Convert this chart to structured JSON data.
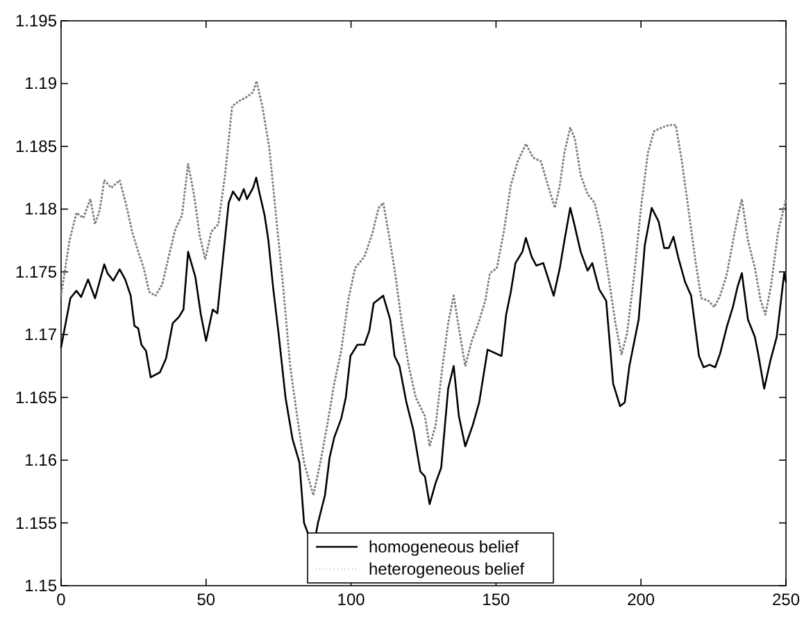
{
  "chart_data": {
    "type": "line",
    "xlim": [
      0,
      250
    ],
    "ylim": [
      1.15,
      1.195
    ],
    "xticks": [
      0,
      50,
      100,
      150,
      200,
      250
    ],
    "yticks": [
      1.15,
      1.155,
      1.16,
      1.165,
      1.17,
      1.175,
      1.18,
      1.185,
      1.19,
      1.195
    ],
    "grid": false,
    "legend": "bottom",
    "series": [
      {
        "name": "homogeneous belief",
        "color": "#000000",
        "line_style": "solid",
        "x": [
          0,
          3.2,
          5.3,
          6.9,
          9.3,
          11.7,
          14.9,
          16,
          18,
          20.2,
          22.1,
          24,
          25.3,
          26.6,
          27.7,
          29.3,
          30.9,
          34.1,
          36.2,
          38.5,
          40.6,
          42.2,
          43.8,
          46.3,
          48.2,
          50,
          52.3,
          53.9,
          55.8,
          57.8,
          59.3,
          61.4,
          63,
          64.1,
          66.2,
          67.3,
          68.3,
          70.2,
          71.5,
          73.1,
          75,
          77.4,
          79.8,
          82.2,
          83.8,
          87,
          88.6,
          91,
          92.6,
          94.2,
          96.6,
          98.2,
          99.8,
          102.2,
          104.6,
          106.3,
          107.8,
          111.1,
          113.5,
          115,
          116.7,
          119.1,
          121.5,
          123.9,
          125.5,
          127.1,
          129.2,
          131.1,
          133.5,
          135.4,
          137.2,
          139.4,
          142,
          144.2,
          147.1,
          151.9,
          153.5,
          155.1,
          156.7,
          159.1,
          160.3,
          162.3,
          163.9,
          166.3,
          169.9,
          172,
          173.6,
          175.6,
          176.8,
          179.2,
          181.6,
          183.2,
          185.6,
          188,
          190.4,
          192.8,
          194.4,
          196,
          199.2,
          201.3,
          203.7,
          206.1,
          208,
          209.6,
          211.2,
          212.8,
          215.2,
          217.3,
          220,
          221.6,
          223.7,
          225.6,
          227.3,
          229.7,
          231.7,
          233.3,
          234.8,
          236.9,
          239.3,
          240.4,
          242.5,
          244.6,
          246.8,
          249.4,
          250
        ],
        "values": [
          1.169,
          1.1729,
          1.1735,
          1.173,
          1.1744,
          1.1729,
          1.1756,
          1.1749,
          1.1743,
          1.1752,
          1.1744,
          1.1731,
          1.1707,
          1.1705,
          1.1692,
          1.1687,
          1.1666,
          1.167,
          1.1681,
          1.1709,
          1.1714,
          1.172,
          1.1766,
          1.1746,
          1.1716,
          1.1695,
          1.172,
          1.1717,
          1.176,
          1.1805,
          1.1814,
          1.1807,
          1.1816,
          1.1808,
          1.1817,
          1.1825,
          1.1814,
          1.1795,
          1.1775,
          1.1738,
          1.1701,
          1.165,
          1.1617,
          1.1598,
          1.155,
          1.153,
          1.155,
          1.1572,
          1.1602,
          1.1618,
          1.1633,
          1.165,
          1.1683,
          1.1692,
          1.1692,
          1.1703,
          1.1725,
          1.1731,
          1.1712,
          1.1683,
          1.1675,
          1.1646,
          1.1624,
          1.1591,
          1.1587,
          1.1565,
          1.1582,
          1.1594,
          1.1657,
          1.1675,
          1.1635,
          1.1611,
          1.1628,
          1.1646,
          1.1688,
          1.1683,
          1.1716,
          1.1734,
          1.1757,
          1.1766,
          1.1777,
          1.1762,
          1.1755,
          1.1757,
          1.1731,
          1.1753,
          1.1775,
          1.1801,
          1.179,
          1.1766,
          1.1751,
          1.1757,
          1.1736,
          1.1727,
          1.1661,
          1.1643,
          1.1646,
          1.1675,
          1.1712,
          1.1771,
          1.1801,
          1.179,
          1.1769,
          1.1769,
          1.1778,
          1.1762,
          1.1742,
          1.1731,
          1.1683,
          1.1674,
          1.1676,
          1.1674,
          1.1685,
          1.1707,
          1.1722,
          1.1738,
          1.1749,
          1.1712,
          1.1698,
          1.1685,
          1.1657,
          1.1679,
          1.1698,
          1.1749,
          1.1742
        ]
      },
      {
        "name": "heterogeneous belief",
        "color": "#808080",
        "line_style": "dotted",
        "x": [
          0,
          2.9,
          5.3,
          7.7,
          10.1,
          11.7,
          13.3,
          14.9,
          17.3,
          20.2,
          22.4,
          24.5,
          26.6,
          28.5,
          30.4,
          32.5,
          34.9,
          37.3,
          39.4,
          41.7,
          43.8,
          45.8,
          47.8,
          49.7,
          51.8,
          54.2,
          56.6,
          59,
          61.4,
          63.8,
          66.2,
          67.4,
          69.4,
          71.8,
          74.2,
          76.6,
          79,
          81.4,
          83.8,
          87,
          89.4,
          91.8,
          94.2,
          96.6,
          99,
          101.4,
          104.6,
          107.4,
          109.5,
          111.1,
          113.1,
          115.4,
          117.5,
          119.9,
          122.3,
          125.5,
          127.1,
          129.2,
          131.4,
          133.5,
          135.4,
          137.5,
          139.4,
          141.5,
          143.9,
          146.3,
          147.9,
          150.3,
          152.7,
          155.1,
          157.5,
          160.3,
          162.8,
          165.5,
          167.9,
          170.3,
          172,
          173.6,
          175.6,
          177.2,
          179.2,
          181.6,
          184,
          186.4,
          188.8,
          191.2,
          193.3,
          195.2,
          197.6,
          200,
          202.4,
          204.5,
          207.2,
          209.6,
          212,
          214.1,
          216.3,
          218.9,
          220.8,
          223.2,
          225.3,
          227.3,
          229.7,
          232.1,
          233.7,
          234.8,
          236.9,
          239.3,
          241.3,
          242.9,
          244.8,
          247.3,
          250
        ],
        "values": [
          1.1731,
          1.1775,
          1.1797,
          1.1793,
          1.1808,
          1.1788,
          1.1799,
          1.1823,
          1.1817,
          1.1823,
          1.1804,
          1.1782,
          1.1766,
          1.1753,
          1.1734,
          1.1731,
          1.174,
          1.1764,
          1.1784,
          1.1795,
          1.1836,
          1.1812,
          1.1779,
          1.176,
          1.1782,
          1.1788,
          1.1828,
          1.1882,
          1.1886,
          1.1889,
          1.1893,
          1.1902,
          1.1882,
          1.1849,
          1.1793,
          1.1738,
          1.1675,
          1.1635,
          1.1598,
          1.1572,
          1.1598,
          1.1628,
          1.1661,
          1.1687,
          1.1727,
          1.1753,
          1.1762,
          1.1781,
          1.1801,
          1.1805,
          1.1779,
          1.1746,
          1.1709,
          1.1675,
          1.165,
          1.1635,
          1.1611,
          1.1628,
          1.1672,
          1.1709,
          1.1731,
          1.1701,
          1.1675,
          1.1694,
          1.1709,
          1.1727,
          1.1749,
          1.1753,
          1.1782,
          1.1819,
          1.1838,
          1.1852,
          1.1841,
          1.1838,
          1.1819,
          1.1801,
          1.1819,
          1.1845,
          1.1865,
          1.1856,
          1.1827,
          1.1812,
          1.1805,
          1.1782,
          1.1746,
          1.1709,
          1.1684,
          1.1701,
          1.1746,
          1.1801,
          1.1845,
          1.1862,
          1.1865,
          1.1867,
          1.1867,
          1.1838,
          1.1801,
          1.1757,
          1.1729,
          1.1727,
          1.1722,
          1.1731,
          1.1749,
          1.1779,
          1.1797,
          1.1808,
          1.1775,
          1.1753,
          1.1727,
          1.1716,
          1.1738,
          1.1782,
          1.1808
        ]
      }
    ]
  }
}
